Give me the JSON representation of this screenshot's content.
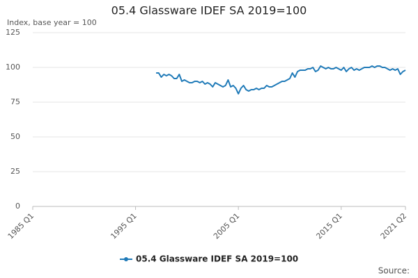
{
  "chart_data": {
    "type": "line",
    "title": "05.4 Glassware IDEF SA 2019=100",
    "y_label": "Index, base year = 100",
    "source": "Source:",
    "categories": [
      "1985 Q1",
      null,
      null,
      null,
      null,
      null,
      null,
      null,
      null,
      null,
      null,
      null,
      null,
      null,
      null,
      null,
      null,
      null,
      null,
      null,
      null,
      null,
      null,
      null,
      null,
      null,
      null,
      null,
      null,
      null,
      null,
      null,
      null,
      null,
      null,
      null,
      null,
      null,
      null,
      null,
      "1995 Q1",
      null,
      null,
      null,
      null,
      null,
      null,
      null,
      null,
      null,
      null,
      null,
      null,
      null,
      null,
      null,
      null,
      null,
      null,
      null,
      null,
      null,
      null,
      null,
      null,
      null,
      null,
      null,
      null,
      null,
      null,
      null,
      null,
      null,
      null,
      null,
      null,
      null,
      null,
      null,
      "2005 Q1",
      null,
      null,
      null,
      null,
      null,
      null,
      null,
      null,
      null,
      null,
      null,
      null,
      null,
      null,
      null,
      null,
      null,
      null,
      null,
      null,
      null,
      null,
      null,
      null,
      null,
      null,
      null,
      null,
      null,
      null,
      null,
      null,
      null,
      null,
      null,
      null,
      null,
      null,
      null,
      "2015 Q1",
      null,
      null,
      null,
      null,
      null,
      null,
      null,
      null,
      null,
      null,
      null,
      null,
      null,
      null,
      null,
      null,
      null,
      null,
      null,
      null,
      null,
      null,
      null,
      null,
      "2021 Q2"
    ],
    "series": [
      {
        "name": "05.4 Glassware IDEF SA 2019=100",
        "color": "#1f7ab8",
        "values": [
          null,
          null,
          null,
          null,
          null,
          null,
          null,
          null,
          null,
          null,
          null,
          null,
          null,
          null,
          null,
          null,
          null,
          null,
          null,
          null,
          null,
          null,
          null,
          null,
          null,
          null,
          null,
          null,
          null,
          null,
          null,
          null,
          null,
          null,
          null,
          null,
          null,
          null,
          null,
          null,
          null,
          null,
          null,
          null,
          null,
          null,
          null,
          null,
          96,
          96,
          93,
          95,
          94,
          95,
          94,
          92,
          92,
          95,
          90,
          91,
          90,
          89,
          89,
          90,
          90,
          89,
          90,
          88,
          89,
          88,
          86,
          89,
          88,
          87,
          86,
          87,
          91,
          86,
          87,
          85,
          81,
          85,
          87,
          84,
          83,
          84,
          84,
          85,
          84,
          85,
          85,
          87,
          86,
          86,
          87,
          88,
          89,
          90,
          90,
          91,
          92,
          96,
          93,
          97,
          98,
          98,
          98,
          99,
          99,
          100,
          97,
          98,
          101,
          100,
          99,
          100,
          99,
          99,
          100,
          99,
          98,
          100,
          97,
          99,
          100,
          98,
          99,
          98,
          99,
          100,
          100,
          100,
          101,
          100,
          101,
          101,
          100,
          100,
          99,
          98,
          99,
          98,
          99,
          95,
          97,
          98
        ]
      }
    ],
    "ylim": [
      0,
      125
    ],
    "yticks": [
      0,
      25,
      50,
      75,
      100,
      125
    ],
    "grid": true,
    "legend": "bottom"
  }
}
